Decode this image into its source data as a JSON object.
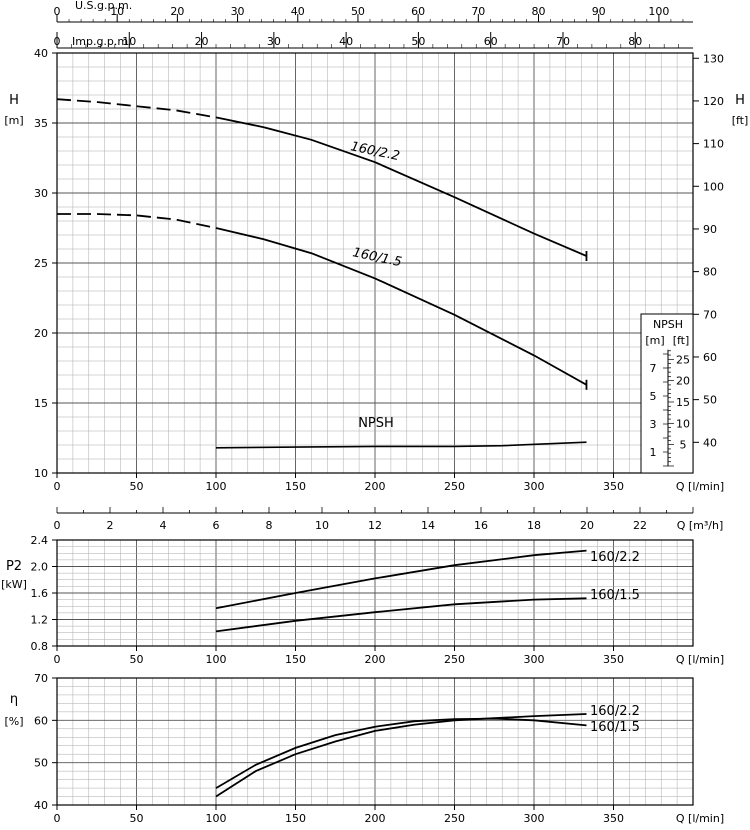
{
  "chart_data": [
    {
      "id": "head",
      "type": "line",
      "top_axis_1": {
        "label": "U.S.g.p.m.",
        "ticks": [
          0,
          10,
          20,
          30,
          40,
          50,
          60,
          70,
          80,
          90,
          100
        ]
      },
      "top_axis_2": {
        "label": "Imp.g.p.m.",
        "ticks": [
          0,
          10,
          20,
          30,
          40,
          50,
          60,
          70,
          80
        ]
      },
      "x_label": "Q [l/min]",
      "x_ticks": [
        0,
        50,
        100,
        150,
        200,
        250,
        300,
        350
      ],
      "xlim": [
        0,
        400
      ],
      "y_label": "H",
      "y_unit": "[m]",
      "ylim": [
        10,
        40
      ],
      "y_ticks": [
        10,
        15,
        20,
        25,
        30,
        35,
        40
      ],
      "y2_label": "H",
      "y2_unit": "[ft]",
      "y2_ticks": [
        40,
        50,
        60,
        70,
        80,
        90,
        100,
        110,
        120,
        130
      ],
      "grid": true,
      "series": [
        {
          "name": "160/2.2",
          "x": [
            0,
            25,
            50,
            75,
            100,
            130,
            160,
            200,
            250,
            300,
            333
          ],
          "y": [
            36.7,
            36.5,
            36.2,
            35.9,
            35.4,
            34.7,
            33.8,
            32.2,
            29.7,
            27.1,
            25.5
          ],
          "dashed_until_x": 100
        },
        {
          "name": "160/1.5",
          "x": [
            0,
            25,
            50,
            75,
            100,
            130,
            160,
            200,
            250,
            300,
            333
          ],
          "y": [
            28.5,
            28.5,
            28.4,
            28.1,
            27.5,
            26.7,
            25.7,
            23.9,
            21.3,
            18.4,
            16.3
          ],
          "dashed_until_x": 100
        }
      ],
      "npsh": {
        "label": "NPSH",
        "x": [
          100,
          150,
          200,
          250,
          280,
          333
        ],
        "y": [
          11.8,
          11.85,
          11.9,
          11.9,
          11.95,
          12.2
        ]
      },
      "npsh_axis": {
        "title": "NPSH",
        "unit_m": "[m]",
        "unit_ft": "[ft]",
        "m_ticks": [
          1,
          3,
          5,
          7
        ],
        "ft_ticks": [
          5,
          10,
          15,
          20,
          25
        ]
      }
    },
    {
      "id": "flow_m3h",
      "type": "axis",
      "x_label": "Q [m³/h]",
      "x_ticks": [
        0,
        2,
        4,
        6,
        8,
        10,
        12,
        14,
        16,
        18,
        20,
        22
      ]
    },
    {
      "id": "power",
      "type": "line",
      "y_label": "P2",
      "y_unit": "[kW]",
      "ylim": [
        0.8,
        2.4
      ],
      "y_ticks": [
        0.8,
        1.2,
        1.6,
        2.0,
        2.4
      ],
      "x_label": "Q [l/min]",
      "x_ticks": [
        0,
        50,
        100,
        150,
        200,
        250,
        300,
        350
      ],
      "grid": true,
      "series": [
        {
          "name": "160/2.2",
          "x": [
            100,
            150,
            200,
            250,
            300,
            333
          ],
          "y": [
            1.37,
            1.6,
            1.82,
            2.02,
            2.17,
            2.24
          ]
        },
        {
          "name": "160/1.5",
          "x": [
            100,
            150,
            200,
            250,
            300,
            333
          ],
          "y": [
            1.02,
            1.18,
            1.31,
            1.43,
            1.5,
            1.52
          ]
        }
      ]
    },
    {
      "id": "efficiency",
      "type": "line",
      "y_label": "η",
      "y_unit": "[%]",
      "ylim": [
        40,
        70
      ],
      "y_ticks": [
        40,
        50,
        60,
        70
      ],
      "x_label": "Q [l/min]",
      "x_ticks": [
        0,
        50,
        100,
        150,
        200,
        250,
        300,
        350
      ],
      "grid": true,
      "series": [
        {
          "name": "160/2.2",
          "x": [
            100,
            125,
            150,
            175,
            200,
            225,
            250,
            275,
            300,
            333
          ],
          "y": [
            42,
            48,
            52,
            55,
            57.5,
            59,
            60,
            60.5,
            61,
            61.5
          ]
        },
        {
          "name": "160/1.5",
          "x": [
            100,
            125,
            150,
            175,
            200,
            225,
            250,
            275,
            300,
            333
          ],
          "y": [
            44,
            49.5,
            53.5,
            56.5,
            58.5,
            59.8,
            60.3,
            60.4,
            60,
            58.8
          ]
        }
      ]
    }
  ]
}
